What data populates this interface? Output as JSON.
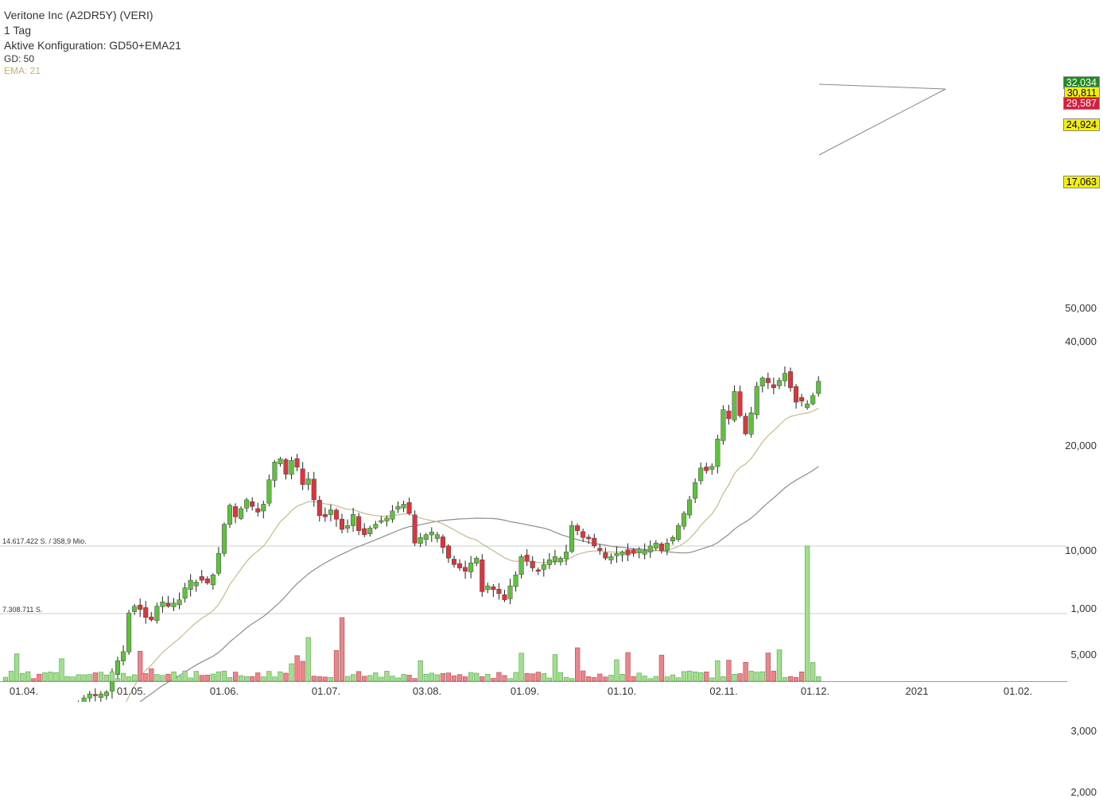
{
  "header": {
    "title": "Veritone Inc (A2DR5Y) (VERI)",
    "interval": "1 Tag",
    "config": "Aktive Konfiguration: GD50+EMA21",
    "gd": "GD: 50",
    "ema": "EMA: 21"
  },
  "badges": [
    {
      "label": "32,034",
      "value": 32.034,
      "bg": "#1e8c1e",
      "fg": "#ffffff"
    },
    {
      "label": "30,811",
      "value": 30.811,
      "bg": "#f5f000",
      "fg": "#000000"
    },
    {
      "label": "29,587",
      "value": 29.587,
      "bg": "#d41e3c",
      "fg": "#ffffff"
    },
    {
      "label": "24,924",
      "value": 24.924,
      "bg": "#f5f000",
      "fg": "#000000"
    },
    {
      "label": "17,063",
      "value": 17.063,
      "bg": "#f5f000",
      "fg": "#000000"
    }
  ],
  "volume_labels": [
    "14.617.422 S. / 358,9 Mio.",
    "7.308.711 S."
  ],
  "colors": {
    "up": "#5fbf3f",
    "down": "#d9363e",
    "gd50": "#8c8c8c",
    "ema21": "#c9b98a",
    "grid": "#cccccc"
  },
  "chart_data": {
    "type": "candlestick",
    "title": "Veritone Inc (A2DR5Y) (VERI)",
    "scale": "log",
    "ylim": [
      1.75,
      55
    ],
    "yticks": [
      {
        "label": "50,000",
        "value": 50
      },
      {
        "label": "40,000",
        "value": 40
      },
      {
        "label": "20,000",
        "value": 20
      },
      {
        "label": "10,000",
        "value": 10
      },
      {
        "label": "5,000",
        "value": 5
      },
      {
        "label": "3,000",
        "value": 3
      },
      {
        "label": "2,000",
        "value": 2
      },
      {
        "label": "1,000",
        "value": 1
      }
    ],
    "xticks": [
      "01.04.",
      "01.05.",
      "01.06.",
      "01.07.",
      "03.08.",
      "01.09.",
      "01.10.",
      "02.11.",
      "01.12.",
      "2021",
      "01.02."
    ],
    "close": [
      2.05,
      2.22,
      2.35,
      2.4,
      2.45,
      2.2,
      2.1,
      2.75,
      2.95,
      2.9,
      3.05,
      3.2,
      3.4,
      3.6,
      3.75,
      3.85,
      3.8,
      3.85,
      3.9,
      4.4,
      4.8,
      5.1,
      6.6,
      6.9,
      6.75,
      6.4,
      6.3,
      6.9,
      7.1,
      6.9,
      7.05,
      7.2,
      7.8,
      8.2,
      8.1,
      8.2,
      8.05,
      8.5,
      9.8,
      11.9,
      13.5,
      12.5,
      13.2,
      14.0,
      13.4,
      12.9,
      13.6,
      16.0,
      18.0,
      18.4,
      16.6,
      18.2,
      17.4,
      15.5,
      16.1,
      14.0,
      12.6,
      12.5,
      13.1,
      12.3,
      11.5,
      11.8,
      12.7,
      11.4,
      11.1,
      11.6,
      11.9,
      12.2,
      12.4,
      13.0,
      13.4,
      13.6,
      12.8,
      10.5,
      10.9,
      11.1,
      11.3,
      11.1,
      10.2,
      9.5,
      9.1,
      8.9,
      8.7,
      9.2,
      9.5,
      7.6,
      7.9,
      7.7,
      7.5,
      7.2,
      7.9,
      8.5,
      9.6,
      9.3,
      8.9,
      8.7,
      9.1,
      9.4,
      9.6,
      9.5,
      9.9,
      11.8,
      11.4,
      10.9,
      10.8,
      10.3,
      10.0,
      9.5,
      9.6,
      9.8,
      9.9,
      9.7,
      9.8,
      10.1,
      10.0,
      10.3,
      10.5,
      10.0,
      10.5,
      10.9,
      11.8,
      12.8,
      14.0,
      15.7,
      17.3,
      17.0,
      17.5,
      21.0,
      25.5,
      24.0,
      28.8,
      24.5,
      21.7,
      25.0,
      29.8,
      31.5,
      30.5,
      29.5,
      31.0,
      32.5,
      29.5,
      26.8,
      27.0,
      26.5,
      28.0,
      30.8
    ],
    "xlabel": "",
    "ylabel": ""
  }
}
